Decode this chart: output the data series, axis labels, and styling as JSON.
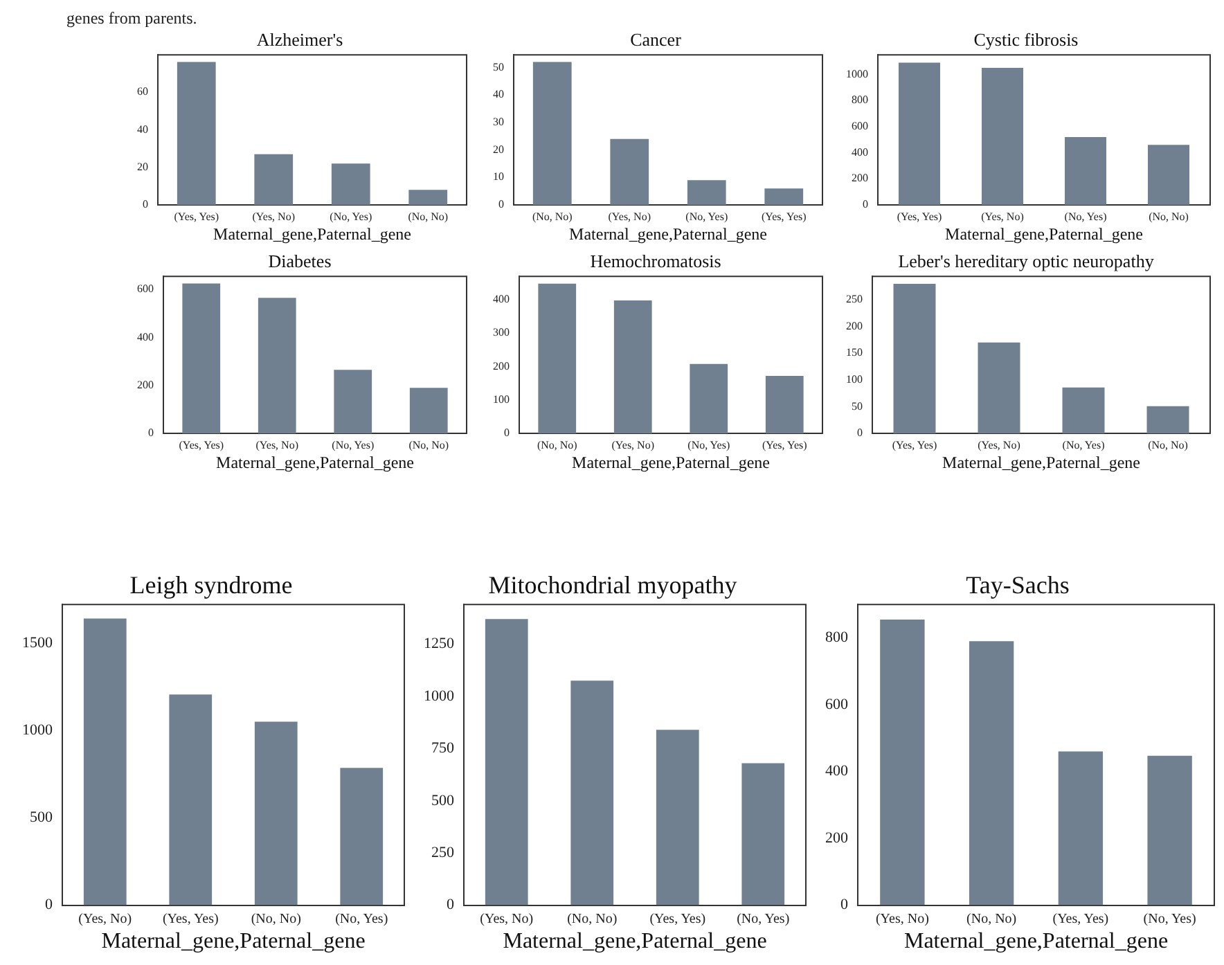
{
  "chart_data": [
    {
      "type": "bar",
      "title": "Alzheimer's",
      "xlabel": "Maternal_gene,Paternal_gene",
      "categories": [
        "(Yes, Yes)",
        "(Yes, No)",
        "(No, Yes)",
        "(No, No)"
      ],
      "values": [
        76,
        27,
        22,
        8
      ],
      "color": "#708090",
      "ylim": [
        0,
        79.8
      ],
      "yticks": [
        0,
        20,
        40,
        60
      ],
      "grid": false,
      "legend": false,
      "annotations": [
        "genes from parents."
      ]
    },
    {
      "type": "bar",
      "title": "Cancer",
      "xlabel": "Maternal_gene,Paternal_gene",
      "categories": [
        "(No, No)",
        "(Yes, No)",
        "(No, Yes)",
        "(Yes, Yes)"
      ],
      "values": [
        52,
        24,
        9,
        6
      ],
      "color": "#708090",
      "ylim": [
        0,
        54.6
      ],
      "yticks": [
        0,
        10,
        20,
        30,
        40,
        50
      ],
      "grid": false,
      "legend": false
    },
    {
      "type": "bar",
      "title": "Cystic fibrosis",
      "xlabel": "Maternal_gene,Paternal_gene",
      "categories": [
        "(Yes, Yes)",
        "(Yes, No)",
        "(No, Yes)",
        "(No, No)"
      ],
      "values": [
        1090,
        1050,
        520,
        460
      ],
      "color": "#708090",
      "ylim": [
        0,
        1150
      ],
      "yticks": [
        0,
        200,
        400,
        600,
        800,
        1000
      ],
      "grid": false,
      "legend": false
    },
    {
      "type": "bar",
      "title": "Diabetes",
      "xlabel": "Maternal_gene,Paternal_gene",
      "categories": [
        "(Yes, Yes)",
        "(Yes, No)",
        "(No, Yes)",
        "(No, No)"
      ],
      "values": [
        625,
        565,
        265,
        190
      ],
      "color": "#708090",
      "ylim": [
        0,
        655
      ],
      "yticks": [
        0,
        200,
        400,
        600
      ],
      "grid": false,
      "legend": false
    },
    {
      "type": "bar",
      "title": "Hemochromatosis",
      "xlabel": "Maternal_gene,Paternal_gene",
      "categories": [
        "(No, No)",
        "(Yes, No)",
        "(No, Yes)",
        "(Yes, Yes)"
      ],
      "values": [
        448,
        398,
        208,
        172
      ],
      "color": "#708090",
      "ylim": [
        0,
        470
      ],
      "yticks": [
        0,
        100,
        200,
        300,
        400
      ],
      "grid": false,
      "legend": false
    },
    {
      "type": "bar",
      "title": "Leber's hereditary optic neuropathy",
      "xlabel": "Maternal_gene,Paternal_gene",
      "categories": [
        "(Yes, Yes)",
        "(Yes, No)",
        "(No, Yes)",
        "(No, No)"
      ],
      "values": [
        280,
        170,
        86,
        51
      ],
      "color": "#708090",
      "ylim": [
        0,
        294
      ],
      "yticks": [
        0,
        50,
        100,
        150,
        200,
        250
      ],
      "grid": false,
      "legend": false
    },
    {
      "type": "bar",
      "title": "Leigh syndrome",
      "xlabel": "Maternal_gene,Paternal_gene",
      "categories": [
        "(Yes, No)",
        "(Yes, Yes)",
        "(No, No)",
        "(No, Yes)"
      ],
      "values": [
        1640,
        1205,
        1050,
        785
      ],
      "color": "#708090",
      "ylim": [
        0,
        1720
      ],
      "yticks": [
        0,
        500,
        1000,
        1500
      ],
      "grid": false,
      "legend": false
    },
    {
      "type": "bar",
      "title": "Mitochondrial myopathy",
      "xlabel": "Maternal_gene,Paternal_gene",
      "categories": [
        "(Yes, No)",
        "(No, No)",
        "(Yes, Yes)",
        "(No, Yes)"
      ],
      "values": [
        1370,
        1075,
        840,
        680
      ],
      "color": "#708090",
      "ylim": [
        0,
        1440
      ],
      "yticks": [
        0,
        250,
        500,
        750,
        1000,
        1250
      ],
      "grid": false,
      "legend": false
    },
    {
      "type": "bar",
      "title": "Tay-Sachs",
      "xlabel": "Maternal_gene,Paternal_gene",
      "categories": [
        "(Yes, No)",
        "(No, No)",
        "(Yes, Yes)",
        "(No, Yes)"
      ],
      "values": [
        855,
        790,
        460,
        447
      ],
      "color": "#708090",
      "ylim": [
        0,
        900
      ],
      "yticks": [
        0,
        200,
        400,
        600,
        800
      ],
      "grid": false,
      "legend": false
    }
  ]
}
